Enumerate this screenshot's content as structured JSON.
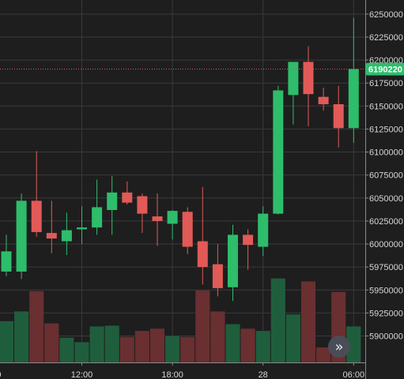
{
  "chart_data": {
    "type": "candlestick",
    "colors": {
      "background": "#1e1e1e",
      "grid": "#3a3a3a",
      "axis_line": "#8a8a8a",
      "up": "#2ebd6b",
      "down": "#e15a57",
      "volume_up": "#1f5e3d",
      "volume_down": "#6a2f30",
      "price_line": "#e15a57",
      "current_price_badge": "#2ebd6b"
    },
    "y_axis": {
      "range": [
        5885000,
        6255000
      ],
      "ticks": [
        {
          "value": 6250000,
          "label": "6250000"
        },
        {
          "value": 6225000,
          "label": "6225000"
        },
        {
          "value": 6200000,
          "label": "6200000"
        },
        {
          "value": 6175000,
          "label": "6175000"
        },
        {
          "value": 6150000,
          "label": "6150000"
        },
        {
          "value": 6125000,
          "label": "6125000"
        },
        {
          "value": 6100000,
          "label": "6100000"
        },
        {
          "value": 6075000,
          "label": "6075000"
        },
        {
          "value": 6050000,
          "label": "6050000"
        },
        {
          "value": 6025000,
          "label": "6025000"
        },
        {
          "value": 6000000,
          "label": "6000000"
        },
        {
          "value": 5975000,
          "label": "5975000"
        },
        {
          "value": 5950000,
          "label": "5950000"
        },
        {
          "value": 5925000,
          "label": "5925000"
        },
        {
          "value": 5900000,
          "label": "5900000"
        }
      ]
    },
    "x_axis": {
      "ticks": [
        {
          "index": -0.5,
          "label": "0"
        },
        {
          "index": 5,
          "label": "12:00"
        },
        {
          "index": 11,
          "label": "18:00"
        },
        {
          "index": 17,
          "label": "28"
        },
        {
          "index": 23,
          "label": "06:00"
        }
      ]
    },
    "current_price": {
      "value": 6190220,
      "label": "6190220"
    },
    "candles": [
      {
        "o": 5970000,
        "h": 6010000,
        "l": 5965000,
        "c": 5992000,
        "v": 0.55
      },
      {
        "o": 5970000,
        "h": 6055000,
        "l": 5962000,
        "c": 6047000,
        "v": 0.68
      },
      {
        "o": 6047000,
        "h": 6101000,
        "l": 6008000,
        "c": 6013000,
        "v": 0.95
      },
      {
        "o": 6012000,
        "h": 6047000,
        "l": 5990000,
        "c": 6006000,
        "v": 0.52
      },
      {
        "o": 6003000,
        "h": 6034000,
        "l": 5988000,
        "c": 6015000,
        "v": 0.33
      },
      {
        "o": 6016000,
        "h": 6041000,
        "l": 6000000,
        "c": 6018000,
        "v": 0.27
      },
      {
        "o": 6018000,
        "h": 6070000,
        "l": 6010000,
        "c": 6040000,
        "v": 0.48
      },
      {
        "o": 6037000,
        "h": 6074000,
        "l": 6010000,
        "c": 6056000,
        "v": 0.49
      },
      {
        "o": 6056000,
        "h": 6068000,
        "l": 6043000,
        "c": 6045000,
        "v": 0.34
      },
      {
        "o": 6052000,
        "h": 6055000,
        "l": 6012000,
        "c": 6033000,
        "v": 0.42
      },
      {
        "o": 6030000,
        "h": 6055000,
        "l": 5998000,
        "c": 6025000,
        "v": 0.45
      },
      {
        "o": 6022000,
        "h": 6037000,
        "l": 6005000,
        "c": 6036000,
        "v": 0.35
      },
      {
        "o": 6035000,
        "h": 6040000,
        "l": 5989000,
        "c": 5997000,
        "v": 0.34
      },
      {
        "o": 6003000,
        "h": 6062000,
        "l": 5956000,
        "c": 5975000,
        "v": 0.96
      },
      {
        "o": 5978000,
        "h": 6000000,
        "l": 5943000,
        "c": 5952000,
        "v": 0.68
      },
      {
        "o": 5953000,
        "h": 6021000,
        "l": 5938000,
        "c": 6010000,
        "v": 0.51
      },
      {
        "o": 6010000,
        "h": 6016000,
        "l": 5972000,
        "c": 5999000,
        "v": 0.45
      },
      {
        "o": 5997000,
        "h": 6041000,
        "l": 5987000,
        "c": 6033000,
        "v": 0.42
      },
      {
        "o": 6033000,
        "h": 6172000,
        "l": 6032000,
        "c": 6167000,
        "v": 1.12
      },
      {
        "o": 6162000,
        "h": 6198000,
        "l": 6130000,
        "c": 6198000,
        "v": 0.64
      },
      {
        "o": 6198000,
        "h": 6215000,
        "l": 6128000,
        "c": 6163000,
        "v": 1.08
      },
      {
        "o": 6160000,
        "h": 6170000,
        "l": 6145000,
        "c": 6152000,
        "v": 0.2
      },
      {
        "o": 6152000,
        "h": 6172000,
        "l": 6105000,
        "c": 6126000,
        "v": 0.94
      },
      {
        "o": 6126000,
        "h": 6246000,
        "l": 6110000,
        "c": 6190220,
        "v": 0.48
      }
    ]
  },
  "ui": {
    "scroll_button_icon": "double-chevron-right-icon",
    "scroll_button_glyph": "»"
  }
}
